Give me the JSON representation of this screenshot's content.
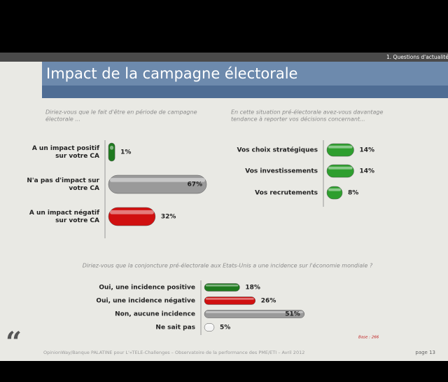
{
  "slide": {
    "section": "1. Questions d'actualité",
    "title": "Impact de la campagne électorale",
    "footer": "OpinionWay/Banque PALATINE pour L'«TELE-Challenges – Observatoire de la performance des PME/ETI – Avril 2012",
    "page": "page 13",
    "base": "Base : 266"
  },
  "chart_data": [
    {
      "type": "bar",
      "orientation": "horizontal",
      "question": [
        "Diriez-vous que le fait d'être en période de campagne",
        "électorale ..."
      ],
      "categories": [
        [
          "A un impact positif",
          "sur votre CA"
        ],
        [
          "N'a pas d'impact sur",
          "votre CA"
        ],
        [
          "A un impact négatif",
          "sur votre CA"
        ]
      ],
      "values": [
        1,
        67,
        32
      ],
      "value_labels": [
        "1%",
        "67%",
        "32%"
      ],
      "colors": [
        "#1f7a1f",
        "#9a9a9a",
        "#d01010"
      ]
    },
    {
      "type": "bar",
      "orientation": "horizontal",
      "question": [
        "En cette situation pré-électorale avez-vous davantage",
        "tendance à reporter vos décisions concernant..."
      ],
      "categories": [
        [
          "Vos choix stratégiques"
        ],
        [
          "Vos investissements"
        ],
        [
          "Vos recrutements"
        ]
      ],
      "values": [
        14,
        14,
        8
      ],
      "value_labels": [
        "14%",
        "14%",
        "8%"
      ],
      "colors": [
        "#2e9e2e",
        "#2e9e2e",
        "#2e9e2e"
      ]
    },
    {
      "type": "bar",
      "orientation": "horizontal",
      "question": [
        "Diriez-vous que la conjoncture pré-électorale aux Etats-Unis a une incidence sur l'économie mondiale ?"
      ],
      "categories": [
        [
          "Oui, une incidence positive"
        ],
        [
          "Oui, une incidence négative"
        ],
        [
          "Non, aucune incidence"
        ],
        [
          "Ne sait pas"
        ]
      ],
      "values": [
        18,
        26,
        51,
        5
      ],
      "value_labels": [
        "18%",
        "26%",
        "51%",
        "5%"
      ],
      "colors": [
        "#1f7a1f",
        "#d01010",
        "#9a9a9a",
        "#f4f4f4"
      ]
    }
  ]
}
